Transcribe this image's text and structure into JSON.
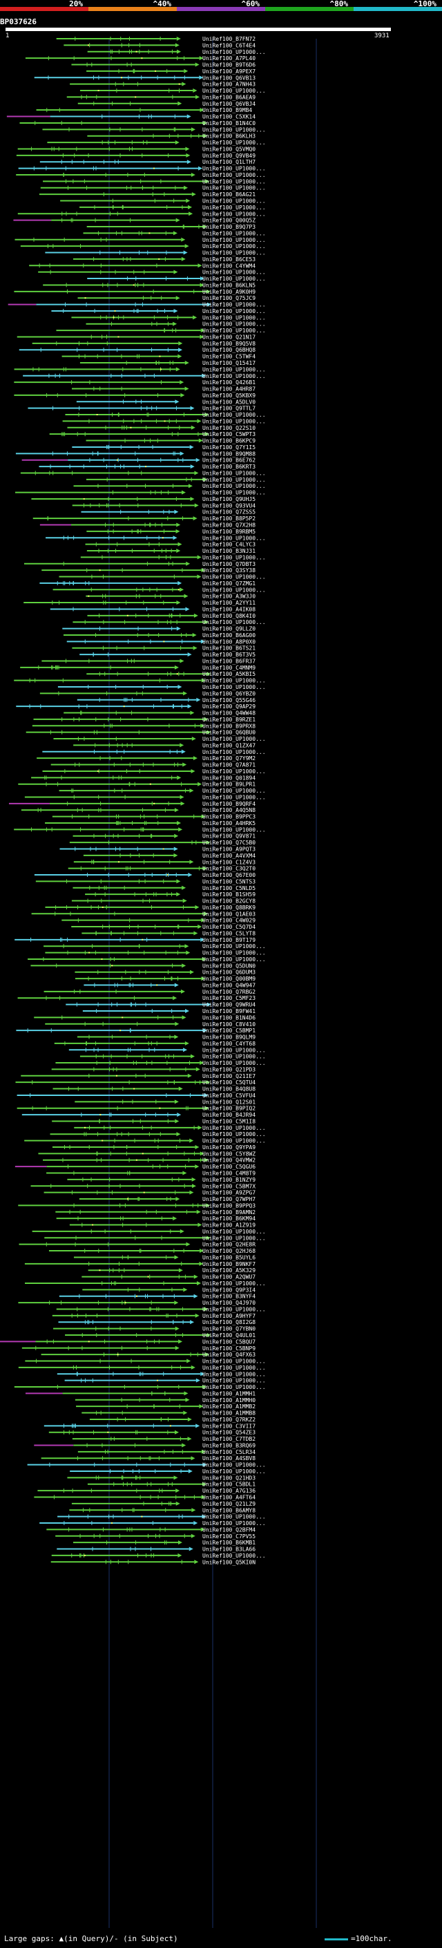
{
  "chart_data": {
    "type": "alignment-overview",
    "title": "BP037626",
    "query_length": 3931,
    "ruler": {
      "start_label": "1",
      "end_label": "3931"
    },
    "identity_scale": {
      "labels": [
        "20%",
        "^40%",
        "^60%",
        "^80%",
        "^100%"
      ],
      "colors": [
        "#d21f1f",
        "#e9821b",
        "#8b3bb6",
        "#1fa51f",
        "#21b8c8",
        "#ffffff"
      ]
    },
    "hit_colors": {
      "high": "#5ad1e6",
      "mid": "#5fd13f",
      "low": "#b33ab3",
      "insert": "#ffff66"
    },
    "hits": [
      "UniRef100_B7FN72",
      "UniRef100_C6T4E4",
      "UniRef100_UP1000...",
      "UniRef100_A7PL40",
      "UniRef100_B9T6D6",
      "UniRef100_A9PEX7",
      "UniRef100_Q6VB13",
      "UniRef100_A7NH43",
      "UniRef100_UP1000...",
      "UniRef100_B6AEA9",
      "UniRef100_Q6VBJ4",
      "UniRef100_B9MB4",
      "UniRef100_C5XK14",
      "UniRef100_B1N4C0",
      "UniRef100_UP1000...",
      "UniRef100_B6KLH3",
      "UniRef100_UP1000...",
      "UniRef100_Q5VMQ0",
      "UniRef100_Q9VB49",
      "UniRef100_Q1LTH7",
      "UniRef100_UP1000...",
      "UniRef100_UP1000...",
      "UniRef100_UP1000...",
      "UniRef100_UP1000...",
      "UniRef100_B6AG21",
      "UniRef100_UP1000...",
      "UniRef100_UP1000...",
      "UniRef100_UP1000...",
      "UniRef100_Q00Q5Z",
      "UniRef100_B9Q7P3",
      "UniRef100_UP1000...",
      "UniRef100_UP1000...",
      "UniRef100_UP1000...",
      "UniRef100_UP1000...",
      "UniRef100_B6CE53",
      "UniRef100_C4YWM4",
      "UniRef100_UP1000...",
      "UniRef100_UP1000...",
      "UniRef100_B6KLN5",
      "UniRef100_A9K0H9",
      "UniRef100_Q75JC9",
      "UniRef100_UP1000...",
      "UniRef100_UP1000...",
      "UniRef100_UP1000...",
      "UniRef100_UP1000...",
      "UniRef100_UP1000...",
      "UniRef100_Q21N17",
      "UniRef100_B9Q5V8",
      "UniRef100_Q6BHQ8",
      "UniRef100_C5TWF4",
      "UniRef100_Q15417",
      "UniRef100_UP1000...",
      "UniRef100_UP1000...",
      "UniRef100_Q426B1",
      "UniRef100_A4HR87",
      "UniRef100_Q5KBX9",
      "UniRef100_A5DLV0",
      "UniRef100_Q9TTL7",
      "UniRef100_UP1000...",
      "UniRef100_UP1000...",
      "UniRef100_Q22S10",
      "UniRef100_C5WPT3",
      "UniRef100_B6KPC9",
      "UniRef100_Q7Y1I5",
      "UniRef100_B9QM88",
      "UniRef100_B6E762",
      "UniRef100_B6KRT3",
      "UniRef100_UP1000...",
      "UniRef100_UP1000...",
      "UniRef100_UP1000...",
      "UniRef100_UP1000...",
      "UniRef100_Q9UHJ5",
      "UniRef100_Q93VU4",
      "UniRef100_Q7ZSS5",
      "UniRef100_B8P5P2",
      "UniRef100_Q7X2H8",
      "UniRef100_B9RBM5",
      "UniRef100_UP1000...",
      "UniRef100_C4LYC3",
      "UniRef100_B3NJ31",
      "UniRef100_UP1000...",
      "UniRef100_Q7DBT3",
      "UniRef100_Q3SY38",
      "UniRef100_UP1000...",
      "UniRef100_Q7ZMG1",
      "UniRef100_UP1000...",
      "UniRef100_A3W3J0",
      "UniRef100_A2YY11",
      "UniRef100_A4IK08",
      "UniRef100_Q8K4I0",
      "UniRef100_UP1000...",
      "UniRef100_Q9LLZ0",
      "UniRef100_B6AG00",
      "UniRef100_A8P0X0",
      "UniRef100_B6TS21",
      "UniRef100_B6T3V5",
      "UniRef100_B6FR37",
      "UniRef100_C4MNM9",
      "UniRef100_A5KBI5",
      "UniRef100_UP1000...",
      "UniRef100_UP1000...",
      "UniRef100_Q6YBZ0",
      "UniRef100_Q55G46",
      "UniRef100_Q9AP29",
      "UniRef100_Q4WW48",
      "UniRef100_B9RZE1",
      "UniRef100_B9PRX8",
      "UniRef100_Q6QBU0",
      "UniRef100_UP1000...",
      "UniRef100_Q1ZX47",
      "UniRef100_UP1000...",
      "UniRef100_Q7Y9M2",
      "UniRef100_Q7A871",
      "UniRef100_UP1000...",
      "UniRef100_Q01894",
      "UniRef100_B9LPR1",
      "UniRef100_UP1000...",
      "UniRef100_UP1000...",
      "UniRef100_B9QRF4",
      "UniRef100_A4Q5N8",
      "UniRef100_B9PPC3",
      "UniRef100_A4HRK5",
      "UniRef100_UP1000...",
      "UniRef100_Q9V871",
      "UniRef100_Q7C5B0",
      "UniRef100_A9PQT3",
      "UniRef100_A4VXM4",
      "UniRef100_C1Z4V3",
      "UniRef100_C3Q2T0",
      "UniRef100_Q67E00",
      "UniRef100_C5NTS3",
      "UniRef100_C5NLD5",
      "UniRef100_B1SH59",
      "UniRef100_B2GCY8",
      "UniRef100_Q8BRK9",
      "UniRef100_Q1AE03",
      "UniRef100_C4W029",
      "UniRef100_C5Q7D4",
      "UniRef100_C5LYT8",
      "UniRef100_B9T179",
      "UniRef100_UP1000...",
      "UniRef100_UP1000...",
      "UniRef100_UP1000...",
      "UniRef100_Q5DUN0",
      "UniRef100_Q6DUM3",
      "UniRef100_Q00BM9",
      "UniRef100_Q4W947",
      "UniRef100_Q7RBG2",
      "UniRef100_C5MF23",
      "UniRef100_Q9WRU4",
      "UniRef100_B9FW41",
      "UniRef100_B1N4D6",
      "UniRef100_C8V410",
      "UniRef100_C5BMP1",
      "UniRef100_B9QLM9",
      "UniRef100_C4YT68",
      "UniRef100_UP1000...",
      "UniRef100_UP1000...",
      "UniRef100_UP1000...",
      "UniRef100_Q21PD3",
      "UniRef100_Q21IE7",
      "UniRef100_C5QTU4",
      "UniRef100_B4Q8U8",
      "UniRef100_C5VFU4",
      "UniRef100_Q12S01",
      "UniRef100_B9PIQ2",
      "UniRef100_B4JR94",
      "UniRef100_C5M1I8",
      "UniRef100_UP1000...",
      "UniRef100_UP1000...",
      "UniRef100_UP1000...",
      "UniRef100_Q9YPA9",
      "UniRef100_C5Y8WZ",
      "UniRef100_Q4VMW2",
      "UniRef100_C5QGU6",
      "UniRef100_C4M8T9",
      "UniRef100_B1NZY9",
      "UniRef100_C5BM7X",
      "UniRef100_A9ZPG7",
      "UniRef100_Q7WPH7",
      "UniRef100_B9PPQ3",
      "UniRef100_B9AMN2",
      "UniRef100_B6KM94",
      "UniRef100_A1Z919",
      "UniRef100_UP1000...",
      "UniRef100_UP1000...",
      "UniRef100_Q2HE8R",
      "UniRef100_Q2HJ68",
      "UniRef100_B5UYL6",
      "UniRef100_B9NKF7",
      "UniRef100_A5K329",
      "UniRef100_A2QWU7",
      "UniRef100_UP1000...",
      "UniRef100_Q9P3I4",
      "UniRef100_B3NYF4",
      "UniRef100_Q4J970",
      "UniRef100_UP1000...",
      "UniRef100_A9HYF7",
      "UniRef100_Q8I2G8",
      "UniRef100_Q7YBN0",
      "UniRef100_Q4UL01",
      "UniRef100_C5BQU7",
      "UniRef100_C5BNP9",
      "UniRef100_Q4FX63",
      "UniRef100_UP1000...",
      "UniRef100_UP1000...",
      "UniRef100_UP1000...",
      "UniRef100_UP1000...",
      "UniRef100_UP1000...",
      "UniRef100_A1MMH1",
      "UniRef100_A1MMH0",
      "UniRef100_A1MMB2",
      "UniRef100_A1MMB8",
      "UniRef100_Q7RKZ2",
      "UniRef100_C3VII7",
      "UniRef100_Q54ZE3",
      "UniRef100_C7TDB2",
      "UniRef100_B3RQ69",
      "UniRef100_C5LR34",
      "UniRef100_A4SBV8",
      "UniRef100_UP1000...",
      "UniRef100_UP1000...",
      "UniRef100_Q21HD3",
      "UniRef100_C5BDL1",
      "UniRef100_A7G136",
      "UniRef100_A4FT64",
      "UniRef100_Q21LZ9",
      "UniRef100_B6AMY8",
      "UniRef100_UP1000...",
      "UniRef100_UP1000...",
      "UniRef100_Q2BFM4",
      "UniRef100_C7PV55",
      "UniRef100_B6KMB1",
      "UniRef100_B3LA66",
      "UniRef100_UP1000...",
      "UniRef100_Q5KI0N"
    ],
    "footer_left": "Large gaps: ▲(in Query)/- (in Subject)",
    "footer_right": "=100char."
  }
}
